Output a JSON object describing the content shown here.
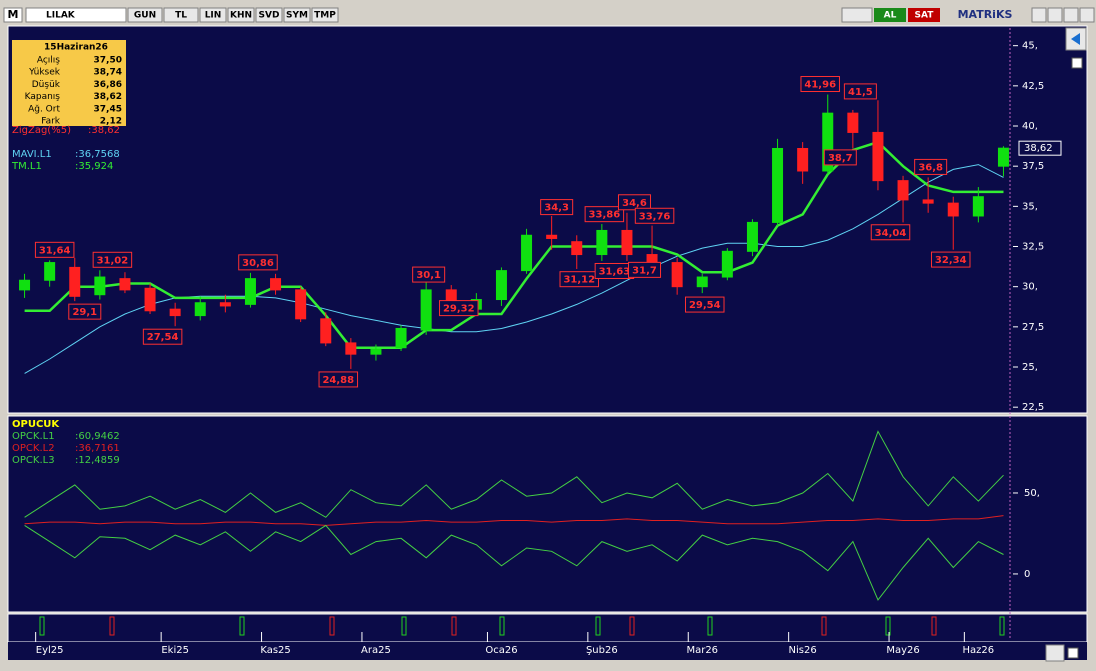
{
  "toolbar": {
    "logo": "M",
    "symbol": "LILAK",
    "buttons": [
      "GUN",
      "TL",
      "LIN",
      "KHN",
      "SVD",
      "SYM",
      "TMP"
    ],
    "buy": "AL",
    "sell": "SAT",
    "brand": "MATRiKS"
  },
  "info_box": {
    "date": "15Haziran26",
    "rows": [
      [
        "Açılış",
        "37,50"
      ],
      [
        "Yüksek",
        "38,74"
      ],
      [
        "Düşük",
        "36,86"
      ],
      [
        "Kapanış",
        "38,62"
      ],
      [
        "Ağ. Ort",
        "37,45"
      ],
      [
        "Fark",
        "2,12"
      ]
    ]
  },
  "chart_data": [
    {
      "type": "candlestick",
      "categories": [
        null,
        "Eyl25",
        null,
        null,
        null,
        null,
        "Eki25",
        null,
        null,
        null,
        "Kas25",
        null,
        null,
        null,
        "Ara25",
        null,
        null,
        null,
        null,
        "Oca26",
        null,
        null,
        null,
        "Şub26",
        null,
        null,
        null,
        "Mar26",
        null,
        null,
        null,
        "Nis26",
        null,
        null,
        null,
        "May26",
        null,
        null,
        "Haz26",
        null
      ],
      "open": [
        29.8,
        30.4,
        31.2,
        29.5,
        30.5,
        29.9,
        28.6,
        28.2,
        29.0,
        28.9,
        30.5,
        29.8,
        28.0,
        26.5,
        25.8,
        26.2,
        27.3,
        29.8,
        28.6,
        29.2,
        31.0,
        33.2,
        32.8,
        32.0,
        33.5,
        32.0,
        31.5,
        30.0,
        30.6,
        32.2,
        34.0,
        38.6,
        37.2,
        40.8,
        39.6,
        36.6,
        35.4,
        35.2,
        34.4,
        37.5
      ],
      "high": [
        30.8,
        31.64,
        31.8,
        31.02,
        30.9,
        30.2,
        29.0,
        29.4,
        29.5,
        30.86,
        30.8,
        30.0,
        28.4,
        26.8,
        26.4,
        27.6,
        30.6,
        30.1,
        29.6,
        31.2,
        33.6,
        34.4,
        33.2,
        33.9,
        34.6,
        33.8,
        31.8,
        30.8,
        32.4,
        34.2,
        39.2,
        39.0,
        41.96,
        41.0,
        41.6,
        36.9,
        36.8,
        35.6,
        36.2,
        38.74
      ],
      "low": [
        29.3,
        30.0,
        29.1,
        29.2,
        29.6,
        28.3,
        27.54,
        27.9,
        28.4,
        28.7,
        29.5,
        27.8,
        26.3,
        24.88,
        25.4,
        26.0,
        27.0,
        28.2,
        28.3,
        28.8,
        30.8,
        32.3,
        31.1,
        31.6,
        31.6,
        31.3,
        29.5,
        29.6,
        30.4,
        31.9,
        33.8,
        36.4,
        37.0,
        38.6,
        36.0,
        34.0,
        34.6,
        32.3,
        34.0,
        36.86
      ],
      "close": [
        30.4,
        31.5,
        29.4,
        30.6,
        29.8,
        28.5,
        28.2,
        29.0,
        28.8,
        30.5,
        29.8,
        28.0,
        26.5,
        25.8,
        26.1,
        27.4,
        29.8,
        28.6,
        29.2,
        31.0,
        33.2,
        33.0,
        32.0,
        33.5,
        32.0,
        31.5,
        30.0,
        30.6,
        32.2,
        34.0,
        38.6,
        37.2,
        40.8,
        39.6,
        36.6,
        35.4,
        35.2,
        34.4,
        35.6,
        38.62
      ],
      "up_color": "#10e010",
      "down_color": "#ff2020",
      "ylim": [
        22.2,
        46.1
      ],
      "yticks": [
        {
          "value": 22.5,
          "label": "22,5"
        },
        {
          "value": 25,
          "label": "25,"
        },
        {
          "value": 27.5,
          "label": "27,5"
        },
        {
          "value": 30,
          "label": "30,"
        },
        {
          "value": 32.5,
          "label": "32,5"
        },
        {
          "value": 35,
          "label": "35,"
        },
        {
          "value": 37.5,
          "label": "37,5"
        },
        {
          "value": 40,
          "label": "40,"
        },
        {
          "value": 42.5,
          "label": "42,5"
        },
        {
          "value": 45,
          "label": "45,"
        }
      ],
      "last_label": "38,62",
      "zigzag": {
        "name": "ZigZag(%5)",
        "label": ":38,62",
        "color": "#ff3030",
        "points": [
          {
            "x": 1.2,
            "value": 31.64,
            "label": "31,64"
          },
          {
            "x": 2.4,
            "value": 29.1,
            "label": "29,1"
          },
          {
            "x": 3.5,
            "value": 31.02,
            "label": "31,02"
          },
          {
            "x": 5.5,
            "value": 27.54,
            "label": "27,54"
          },
          {
            "x": 9.3,
            "value": 30.86,
            "label": "30,86"
          },
          {
            "x": 12.5,
            "value": 24.88,
            "label": "24,88"
          },
          {
            "x": 16.1,
            "value": 30.1,
            "label": "30,1"
          },
          {
            "x": 17.3,
            "value": 29.32,
            "label": "29,32"
          },
          {
            "x": 21.2,
            "value": 34.3,
            "label": "34,3"
          },
          {
            "x": 22.1,
            "value": 31.12,
            "label": "31,12"
          },
          {
            "x": 23.1,
            "value": 33.86,
            "label": "33,86"
          },
          {
            "x": 23.5,
            "value": 31.63,
            "label": "31,63"
          },
          {
            "x": 24.3,
            "value": 34.6,
            "label": "34,6"
          },
          {
            "x": 24.7,
            "value": 31.7,
            "label": "31,7"
          },
          {
            "x": 25.1,
            "value": 33.76,
            "label": "33,76"
          },
          {
            "x": 27.1,
            "value": 29.54,
            "label": "29,54"
          },
          {
            "x": 31.7,
            "value": 41.96,
            "label": "41,96"
          },
          {
            "x": 32.5,
            "value": 38.7,
            "label": "38,7"
          },
          {
            "x": 33.3,
            "value": 41.5,
            "label": "41,5"
          },
          {
            "x": 34.5,
            "value": 34.04,
            "label": "34,04"
          },
          {
            "x": 36.1,
            "value": 36.8,
            "label": "36,8"
          },
          {
            "x": 36.9,
            "value": 32.34,
            "label": "32,34"
          }
        ]
      },
      "series": [
        {
          "name": "MAVI.L1",
          "label": ":36,7568",
          "color": "#5fd3f3",
          "values": [
            24.6,
            25.5,
            26.5,
            27.5,
            28.3,
            28.9,
            29.3,
            29.4,
            29.4,
            29.4,
            29.3,
            29.0,
            28.6,
            28.2,
            27.9,
            27.6,
            27.4,
            27.2,
            27.2,
            27.4,
            27.8,
            28.3,
            28.9,
            29.6,
            30.4,
            31.2,
            31.9,
            32.4,
            32.7,
            32.7,
            32.5,
            32.5,
            32.9,
            33.6,
            34.5,
            35.5,
            36.5,
            37.3,
            37.6,
            36.8
          ]
        },
        {
          "name": "TM.L1",
          "label": ":35,924",
          "color": "#33ee33",
          "values": [
            28.5,
            28.5,
            30,
            30,
            30.2,
            30.2,
            29.3,
            29.3,
            29.3,
            29.3,
            30,
            30,
            28.2,
            26.2,
            26.2,
            26.2,
            27.3,
            27.3,
            28.3,
            28.3,
            30.5,
            32.5,
            32.5,
            32.5,
            32.5,
            32.5,
            32,
            30.9,
            30.9,
            31.5,
            33.8,
            34.5,
            37,
            38.5,
            39,
            37.5,
            36.3,
            35.9,
            35.9,
            35.9
          ]
        }
      ]
    },
    {
      "type": "line",
      "title": "OPUCUK",
      "ylim": [
        -23.5,
        96.3
      ],
      "yticks": [
        {
          "value": 50,
          "label": "50,"
        },
        0
      ],
      "series": [
        {
          "name": "OPCK.L1",
          "label": ":60,9462",
          "color": "#44d044",
          "values": [
            35,
            45,
            55,
            40,
            42,
            48,
            40,
            46,
            38,
            50,
            38,
            44,
            35,
            52,
            44,
            42,
            55,
            40,
            46,
            58,
            48,
            50,
            60,
            44,
            50,
            47,
            56,
            40,
            46,
            42,
            44,
            50,
            62,
            45,
            88,
            60,
            42,
            60,
            45,
            61
          ]
        },
        {
          "name": "OPCK.L2",
          "label": ":36,7161",
          "color": "#e02020",
          "values": [
            31,
            32,
            32,
            31,
            32,
            32,
            31,
            31,
            32,
            32,
            31,
            31,
            30,
            31,
            32,
            32,
            33,
            32,
            32,
            33,
            33,
            32,
            33,
            33,
            34,
            33,
            33,
            32,
            31,
            31,
            31,
            32,
            33,
            33,
            34,
            33,
            33,
            34,
            34,
            36
          ]
        },
        {
          "name": "OPCK.L3",
          "label": ":12,4859",
          "color": "#44d044",
          "values": [
            30,
            20,
            10,
            23,
            22,
            15,
            24,
            18,
            26,
            14,
            26,
            20,
            30,
            12,
            20,
            22,
            10,
            24,
            18,
            5,
            16,
            14,
            5,
            20,
            14,
            18,
            8,
            24,
            18,
            22,
            20,
            14,
            2,
            20,
            -16,
            4,
            22,
            4,
            20,
            12
          ]
        }
      ]
    }
  ]
}
